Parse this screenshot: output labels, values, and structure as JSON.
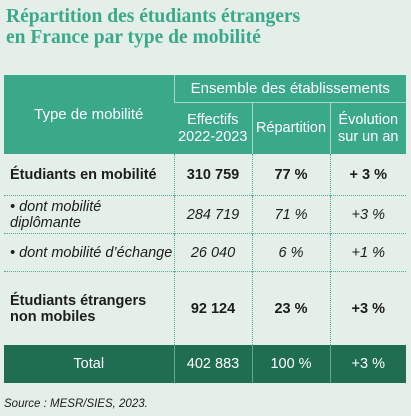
{
  "title": {
    "line1": "Répartition des étudiants étrangers",
    "line2": "en France par type de mobilité"
  },
  "table": {
    "header": {
      "row_header": "Type de mobilité",
      "group": "Ensemble des établissements",
      "columns": [
        {
          "line1": "Effectifs",
          "line2": "2022-2023"
        },
        {
          "line1": "Répartition",
          "line2": ""
        },
        {
          "line1": "Évolution",
          "line2": "sur un an"
        }
      ]
    },
    "rows": [
      {
        "label_line1": "Étudiants en mobilité",
        "label_line2": "",
        "effectifs": "310 759",
        "repartition": "77 %",
        "evolution": "+ 3 %",
        "style": "bold"
      },
      {
        "label_line1": "• dont mobilité diplômante",
        "label_line2": "",
        "effectifs": "284 719",
        "repartition": "71 %",
        "evolution": "+3 %",
        "style": "italic"
      },
      {
        "label_line1": "• dont mobilité d’échange",
        "label_line2": "",
        "effectifs": "26 040",
        "repartition": "6 %",
        "evolution": "+1 %",
        "style": "italic"
      },
      {
        "label_line1": "Étudiants étrangers",
        "label_line2": "non mobiles",
        "effectifs": "92 124",
        "repartition": "23 %",
        "evolution": "+3 %",
        "style": "bold"
      }
    ],
    "total": {
      "label": "Total",
      "effectifs": "402 883",
      "repartition": "100 %",
      "evolution": "+3 %"
    }
  },
  "source": "Source : MESR/SIES, 2023."
}
